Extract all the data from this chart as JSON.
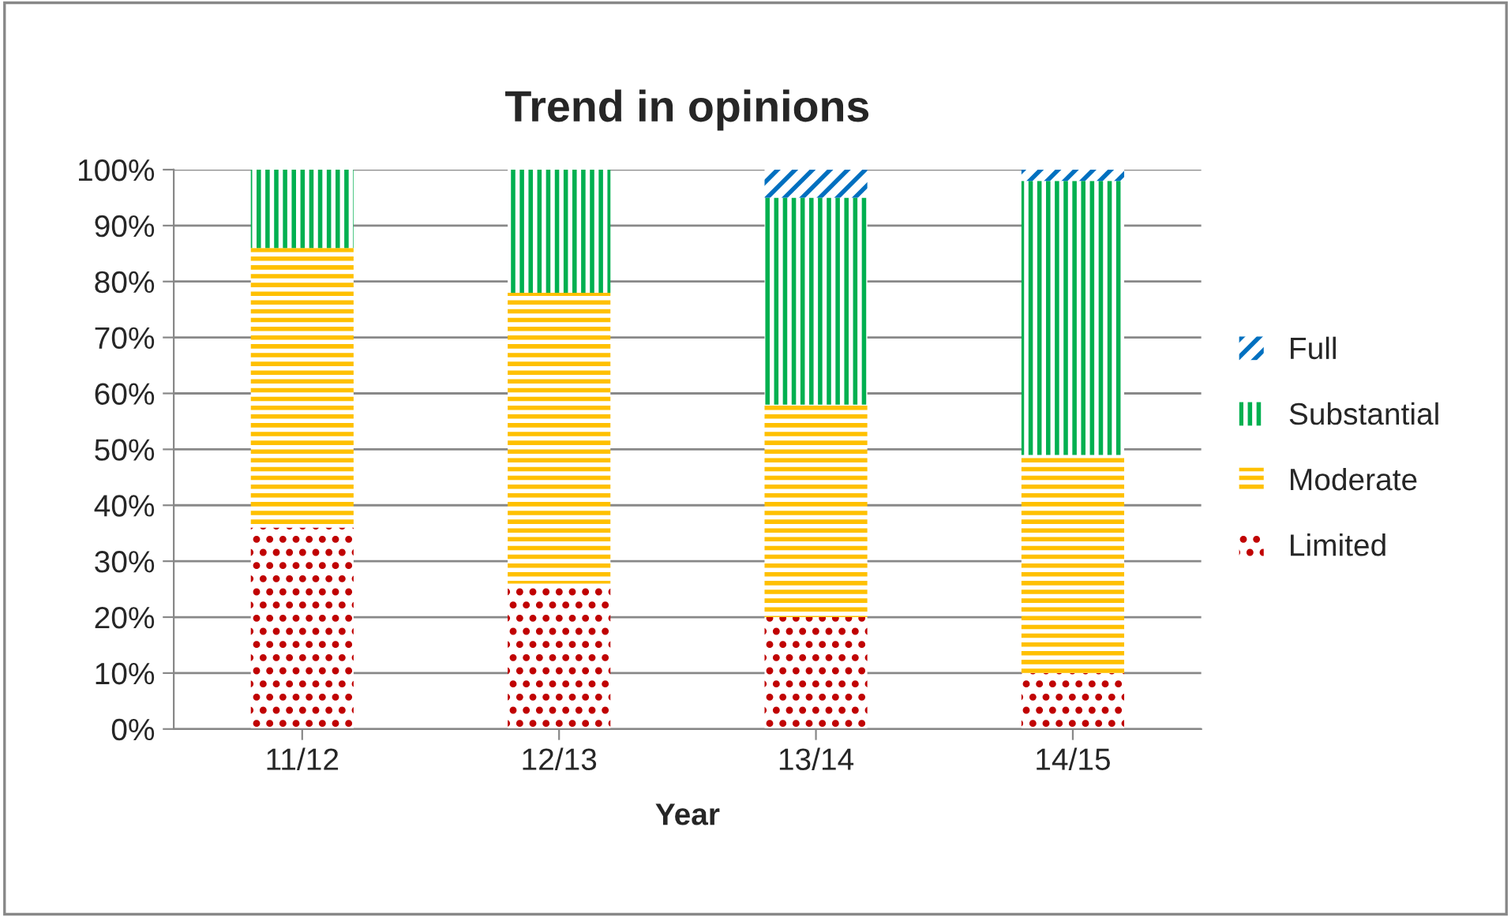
{
  "chart_data": {
    "type": "bar",
    "title": "Trend in opinions",
    "xlabel": "Year",
    "stacked": true,
    "categories": [
      "11/12",
      "12/13",
      "13/14",
      "14/15"
    ],
    "series": [
      {
        "name": "Limited",
        "color": "#c00000",
        "values": [
          36,
          26,
          20,
          10
        ]
      },
      {
        "name": "Moderate",
        "color": "#ffc000",
        "values": [
          50,
          52,
          38,
          39
        ]
      },
      {
        "name": "Substantial",
        "color": "#00b050",
        "values": [
          14,
          22,
          37,
          49
        ]
      },
      {
        "name": "Full",
        "color": "#0070c0",
        "values": [
          0,
          0,
          5,
          2
        ]
      }
    ],
    "ylim": [
      0,
      100
    ],
    "yticks": [
      {
        "value": 0,
        "label": "0%"
      },
      {
        "value": 10,
        "label": "10%"
      },
      {
        "value": 20,
        "label": "20%"
      },
      {
        "value": 30,
        "label": "30%"
      },
      {
        "value": 40,
        "label": "40%"
      },
      {
        "value": 50,
        "label": "50%"
      },
      {
        "value": 60,
        "label": "60%"
      },
      {
        "value": 70,
        "label": "70%"
      },
      {
        "value": 80,
        "label": "80%"
      },
      {
        "value": 90,
        "label": "90%"
      },
      {
        "value": 100,
        "label": "100%"
      }
    ],
    "grid": "y",
    "legend": "right"
  }
}
